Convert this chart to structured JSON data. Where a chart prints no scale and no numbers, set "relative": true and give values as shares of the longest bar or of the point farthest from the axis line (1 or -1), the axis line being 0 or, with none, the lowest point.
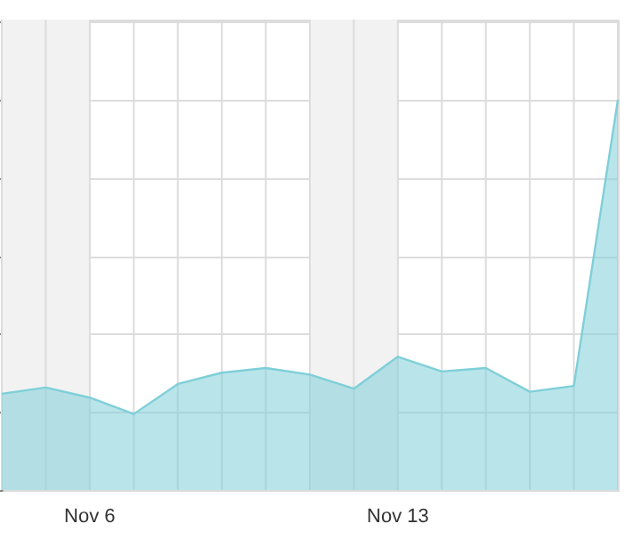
{
  "chart_data": {
    "type": "area",
    "relative": true,
    "grid": true,
    "x": [
      "--11-04",
      "--11-05",
      "--11-06",
      "--11-07",
      "--11-08",
      "--11-09",
      "--11-10",
      "--11-11",
      "--11-12",
      "--11-13",
      "--11-14",
      "--11-15",
      "--11-16",
      "--11-17",
      "--11-18"
    ],
    "xlim": [
      "--11-04",
      "--11-18"
    ],
    "xticks": [
      {
        "value": "--11-04",
        "label": null
      },
      {
        "value": "--11-05",
        "label": null
      },
      {
        "value": "--11-06",
        "label": "Nov 6"
      },
      {
        "value": "--11-07",
        "label": null
      },
      {
        "value": "--11-08",
        "label": null
      },
      {
        "value": "--11-09",
        "label": null
      },
      {
        "value": "--11-10",
        "label": null
      },
      {
        "value": "--11-11",
        "label": null
      },
      {
        "value": "--11-12",
        "label": null
      },
      {
        "value": "--11-13",
        "label": "Nov 13"
      },
      {
        "value": "--11-14",
        "label": null
      },
      {
        "value": "--11-15",
        "label": null
      },
      {
        "value": "--11-16",
        "label": null
      },
      {
        "value": "--11-17",
        "label": null
      },
      {
        "value": "--11-18",
        "label": null
      }
    ],
    "series": [
      {
        "color": "#7fcfd8",
        "values": [
          0.247,
          0.263,
          0.237,
          0.195,
          0.272,
          0.301,
          0.313,
          0.296,
          0.26,
          0.342,
          0.304,
          0.313,
          0.252,
          0.267,
          1
        ]
      }
    ],
    "bands": [
      {
        "axis": "x",
        "from": "--11-04",
        "to": "--11-06",
        "color": "#f2f2f2"
      },
      {
        "axis": "x",
        "from": "--11-11",
        "to": "--11-13",
        "color": "#f2f2f2"
      }
    ]
  }
}
